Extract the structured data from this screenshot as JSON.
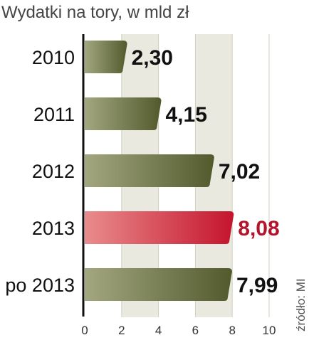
{
  "chart_data": {
    "type": "bar",
    "orientation": "horizontal",
    "title": "Wydatki na tory, w mld zł",
    "source": "źródło: MI",
    "categories": [
      "2010",
      "2011",
      "2012",
      "2013",
      "po 2013"
    ],
    "values": [
      2.3,
      4.15,
      7.02,
      8.08,
      7.99
    ],
    "value_labels": [
      "2,30",
      "4,15",
      "7,02",
      "8,08",
      "7,99"
    ],
    "highlight_index": 3,
    "xlim": [
      0,
      10
    ],
    "xticks": [
      0,
      2,
      4,
      6,
      8,
      10
    ],
    "xtick_labels": [
      "0",
      "2",
      "4",
      "6",
      "8",
      "10"
    ],
    "grid": true,
    "colors": {
      "bar_light": "#a3a780",
      "bar_dark": "#525a2d",
      "highlight_light": "#e98c8c",
      "highlight_dark": "#c5142d",
      "highlight_text": "#b5122b",
      "value_text": "#111111",
      "grid_band": "#e9e9df"
    }
  }
}
